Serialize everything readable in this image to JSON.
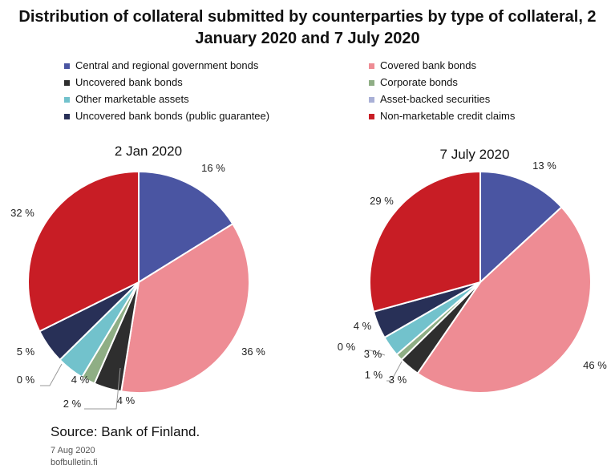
{
  "title_line1": "Distribution of collateral submitted by counterparties by type of collateral, 2",
  "title_line2": "January 2020 and 7 July 2020",
  "legend": [
    {
      "label": "Central and regional government bonds",
      "color": "#4a55a2"
    },
    {
      "label": "Covered bank bonds",
      "color": "#ee8c94"
    },
    {
      "label": "Uncovered bank bonds",
      "color": "#2e2e2e"
    },
    {
      "label": "Corporate bonds",
      "color": "#8fae85"
    },
    {
      "label": "Other marketable assets",
      "color": "#72c2cc"
    },
    {
      "label": "Asset-backed securities",
      "color": "#a9b0d6"
    },
    {
      "label": "Uncovered bank bonds (public guarantee)",
      "color": "#283057"
    },
    {
      "label": "Non-marketable credit claims",
      "color": "#c81d25"
    }
  ],
  "chart_data": [
    {
      "type": "pie",
      "title": "2 Jan 2020",
      "categories": [
        "Central and regional government bonds",
        "Covered bank bonds",
        "Uncovered bank bonds",
        "Corporate bonds",
        "Other marketable assets",
        "Asset-backed securities",
        "Uncovered bank bonds (public guarantee)",
        "Non-marketable credit claims"
      ],
      "values": [
        16,
        36,
        4,
        2,
        4,
        0,
        5,
        32
      ],
      "labels": [
        "16 %",
        "36 %",
        "4 %",
        "2 %",
        "4 %",
        "0 %",
        "5 %",
        "32 %"
      ]
    },
    {
      "type": "pie",
      "title": "7 July 2020",
      "categories": [
        "Central and regional government bonds",
        "Covered bank bonds",
        "Uncovered bank bonds",
        "Corporate bonds",
        "Other marketable assets",
        "Asset-backed securities",
        "Uncovered bank bonds (public guarantee)",
        "Non-marketable credit claims"
      ],
      "values": [
        13,
        46,
        3,
        1,
        3,
        0,
        4,
        29
      ],
      "labels": [
        "13 %",
        "46 %",
        "3 %",
        "1 %",
        "3 %",
        "0 %",
        "4 %",
        "29 %"
      ]
    }
  ],
  "footer": {
    "source": "Source: Bank of Finland.",
    "date": "7 Aug 2020",
    "site": "bofbulletin.fi"
  }
}
